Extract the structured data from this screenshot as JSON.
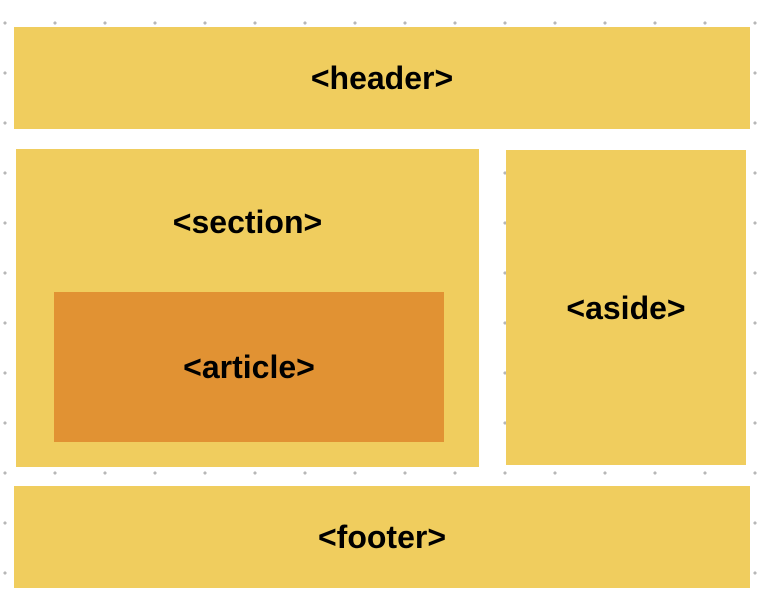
{
  "colors": {
    "container_fill": "#f0cd5e",
    "nested_fill": "#e19233",
    "background": "#ffffff",
    "grid_dot": "#b7b7b7",
    "text": "#000000"
  },
  "blocks": {
    "header": "<header>",
    "section": "<section>",
    "article": "<article>",
    "aside": "<aside>",
    "footer": "<footer>"
  }
}
